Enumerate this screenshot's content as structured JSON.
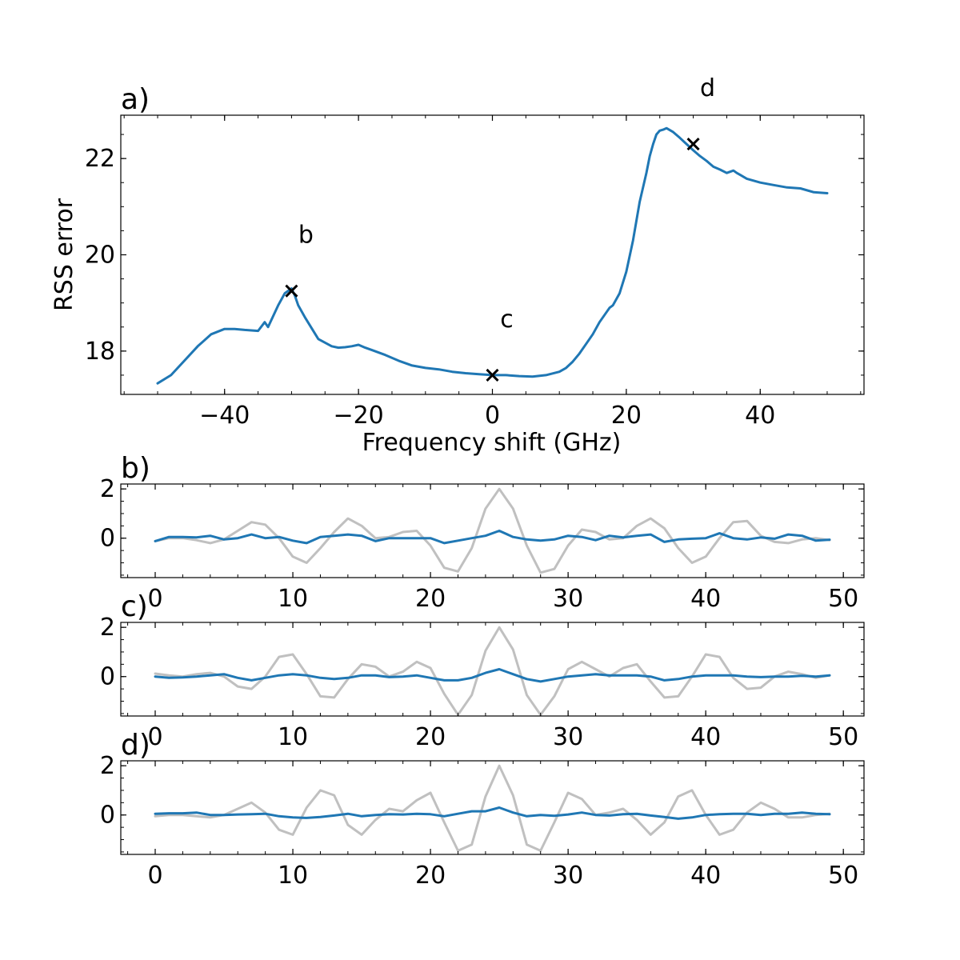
{
  "colors": {
    "main": "#1f77b4",
    "reference": "#c0c0c0",
    "marker": "#000000"
  },
  "chart_data": [
    {
      "panel": "a)",
      "type": "line",
      "xlabel": "Frequency shift (GHz)",
      "ylabel": "RSS error",
      "xlim": [
        -55.5,
        55.5
      ],
      "ylim": [
        17.1,
        22.9
      ],
      "xticks": [
        -40,
        -20,
        0,
        20,
        40
      ],
      "xtick_labels": [
        "−40",
        "−20",
        "0",
        "20",
        "40"
      ],
      "yticks": [
        18,
        20,
        22
      ],
      "ytick_labels": [
        "18",
        "20",
        "22"
      ],
      "series": [
        {
          "x": [
            -50,
            -48,
            -46,
            -44,
            -42,
            -40,
            -38.5,
            -37,
            -35,
            -34,
            -33.5,
            -33,
            -32,
            -31,
            -30,
            -29.5,
            -29,
            -28,
            -26,
            -24,
            -23,
            -22,
            -21,
            -20,
            -19,
            -18,
            -16,
            -14,
            -12,
            -10,
            -8,
            -6,
            -4,
            -2,
            0,
            2,
            4,
            6,
            8,
            10,
            11,
            12,
            13,
            14,
            15,
            16,
            17,
            17.5,
            18,
            19,
            20,
            21,
            22,
            23,
            23.5,
            24,
            24.5,
            25,
            25.5,
            26,
            27,
            28,
            29,
            30,
            31,
            32,
            33,
            34,
            35,
            36,
            36.5,
            37,
            38,
            40,
            42,
            44,
            46,
            48,
            50
          ],
          "y": [
            17.33,
            17.5,
            17.8,
            18.1,
            18.35,
            18.46,
            18.46,
            18.44,
            18.42,
            18.6,
            18.5,
            18.65,
            18.95,
            19.2,
            19.3,
            19.15,
            18.95,
            18.7,
            18.25,
            18.1,
            18.07,
            18.08,
            18.1,
            18.13,
            18.07,
            18.02,
            17.92,
            17.8,
            17.7,
            17.65,
            17.62,
            17.57,
            17.54,
            17.52,
            17.5,
            17.5,
            17.48,
            17.47,
            17.5,
            17.57,
            17.65,
            17.78,
            17.95,
            18.15,
            18.35,
            18.6,
            18.8,
            18.9,
            18.95,
            19.2,
            19.65,
            20.3,
            21.1,
            21.7,
            22.05,
            22.3,
            22.5,
            22.58,
            22.6,
            22.63,
            22.55,
            22.43,
            22.3,
            22.17,
            22.05,
            21.95,
            21.83,
            21.77,
            21.7,
            21.75,
            21.7,
            21.66,
            21.58,
            21.5,
            21.45,
            21.4,
            21.38,
            21.3,
            21.28
          ]
        }
      ],
      "markers": [
        {
          "x": -30,
          "y": 19.25,
          "label": "b"
        },
        {
          "x": 0,
          "y": 17.5,
          "label": "c"
        },
        {
          "x": 30,
          "y": 22.3,
          "label": "d"
        }
      ]
    },
    {
      "panel": "b)",
      "type": "line",
      "xlim": [
        -2.5,
        51.5
      ],
      "ylim": [
        -1.6,
        2.2
      ],
      "xticks": [
        0,
        10,
        20,
        30,
        40,
        50
      ],
      "xtick_labels": [
        "0",
        "10",
        "20",
        "30",
        "40",
        "50"
      ],
      "yticks": [
        0,
        2
      ],
      "ytick_labels": [
        "0",
        "2"
      ],
      "series": [
        {
          "role": "reference",
          "values": [
            -0.12,
            0.0,
            0.0,
            -0.08,
            -0.2,
            -0.05,
            0.3,
            0.65,
            0.55,
            0.0,
            -0.75,
            -1.0,
            -0.4,
            0.25,
            0.8,
            0.5,
            0.0,
            0.05,
            0.25,
            0.3,
            -0.3,
            -1.2,
            -1.35,
            -0.4,
            1.2,
            2.0,
            1.2,
            -0.3,
            -1.4,
            -1.25,
            -0.3,
            0.35,
            0.25,
            -0.05,
            0.0,
            0.5,
            0.8,
            0.4,
            -0.4,
            -1.0,
            -0.75,
            0.0,
            0.65,
            0.7,
            0.1,
            -0.15,
            -0.2,
            -0.05,
            0.0,
            -0.08
          ]
        },
        {
          "role": "main",
          "values": [
            -0.12,
            0.05,
            0.05,
            0.03,
            0.1,
            -0.05,
            0.0,
            0.15,
            0.0,
            0.05,
            -0.1,
            -0.2,
            0.05,
            0.1,
            0.15,
            0.1,
            -0.12,
            0.0,
            0.0,
            0.0,
            0.0,
            -0.2,
            -0.1,
            0.0,
            0.1,
            0.3,
            0.05,
            -0.05,
            -0.1,
            -0.05,
            0.1,
            0.05,
            -0.08,
            0.1,
            0.03,
            0.1,
            0.15,
            -0.15,
            -0.05,
            -0.02,
            0.0,
            0.2,
            0.0,
            -0.05,
            0.03,
            -0.02,
            0.15,
            0.1,
            -0.1,
            -0.06
          ]
        }
      ]
    },
    {
      "panel": "c)",
      "type": "line",
      "xlim": [
        -2.5,
        51.5
      ],
      "ylim": [
        -1.6,
        2.2
      ],
      "xticks": [
        0,
        10,
        20,
        30,
        40,
        50
      ],
      "xtick_labels": [
        "0",
        "10",
        "20",
        "30",
        "40",
        "50"
      ],
      "yticks": [
        0,
        2
      ],
      "ytick_labels": [
        "0",
        "2"
      ],
      "series": [
        {
          "role": "reference",
          "values": [
            0.12,
            0.05,
            0.0,
            0.1,
            0.15,
            0.0,
            -0.4,
            -0.5,
            0.0,
            0.8,
            0.9,
            0.1,
            -0.8,
            -0.85,
            -0.1,
            0.5,
            0.4,
            0.0,
            0.2,
            0.6,
            0.35,
            -0.7,
            -1.55,
            -0.75,
            1.05,
            2.0,
            1.1,
            -0.75,
            -1.55,
            -0.8,
            0.3,
            0.6,
            0.3,
            0.0,
            0.35,
            0.5,
            -0.2,
            -0.85,
            -0.8,
            0.0,
            0.9,
            0.8,
            -0.05,
            -0.5,
            -0.45,
            0.0,
            0.2,
            0.1,
            -0.05,
            0.05
          ]
        },
        {
          "role": "main",
          "values": [
            0.0,
            -0.05,
            -0.03,
            0.0,
            0.05,
            0.1,
            -0.05,
            -0.15,
            -0.05,
            0.05,
            0.1,
            0.05,
            -0.05,
            -0.1,
            -0.05,
            0.05,
            0.05,
            -0.02,
            0.0,
            0.05,
            -0.05,
            -0.15,
            -0.15,
            -0.05,
            0.15,
            0.3,
            0.1,
            -0.1,
            -0.2,
            -0.1,
            0.0,
            0.05,
            0.1,
            0.05,
            0.05,
            0.05,
            0.0,
            -0.15,
            -0.1,
            0.0,
            0.05,
            0.05,
            0.05,
            0.0,
            -0.02,
            0.0,
            0.0,
            0.03,
            0.0,
            0.05
          ]
        }
      ]
    },
    {
      "panel": "d)",
      "type": "line",
      "xlim": [
        -2.5,
        51.5
      ],
      "ylim": [
        -1.6,
        2.2
      ],
      "xticks": [
        0,
        10,
        20,
        30,
        40,
        50
      ],
      "xtick_labels": [
        "0",
        "10",
        "20",
        "30",
        "40",
        "50"
      ],
      "yticks": [
        0,
        2
      ],
      "ytick_labels": [
        "0",
        "2"
      ],
      "series": [
        {
          "role": "reference",
          "values": [
            -0.05,
            0.0,
            0.0,
            -0.05,
            -0.1,
            0.0,
            0.25,
            0.5,
            0.1,
            -0.6,
            -0.8,
            0.3,
            1.0,
            0.8,
            -0.4,
            -0.8,
            -0.2,
            0.25,
            0.15,
            0.6,
            0.9,
            -0.3,
            -1.45,
            -1.2,
            0.75,
            2.0,
            0.8,
            -1.2,
            -1.45,
            -0.3,
            0.9,
            0.65,
            0.0,
            0.1,
            0.25,
            -0.2,
            -0.8,
            -0.3,
            0.75,
            1.0,
            0.0,
            -0.8,
            -0.6,
            0.1,
            0.5,
            0.25,
            -0.1,
            -0.1,
            0.0,
            0.05
          ]
        },
        {
          "role": "main",
          "values": [
            0.05,
            0.07,
            0.07,
            0.1,
            0.0,
            0.0,
            0.02,
            0.03,
            0.05,
            -0.05,
            -0.1,
            -0.12,
            -0.08,
            -0.02,
            0.05,
            -0.05,
            0.0,
            0.03,
            0.02,
            0.05,
            0.03,
            -0.05,
            0.05,
            0.15,
            0.15,
            0.3,
            0.1,
            -0.05,
            0.0,
            -0.03,
            0.02,
            0.1,
            0.0,
            -0.02,
            0.03,
            0.05,
            -0.02,
            -0.08,
            -0.15,
            -0.1,
            0.0,
            0.03,
            0.05,
            0.05,
            0.0,
            0.05,
            0.05,
            0.1,
            0.05,
            0.03
          ]
        }
      ]
    }
  ]
}
